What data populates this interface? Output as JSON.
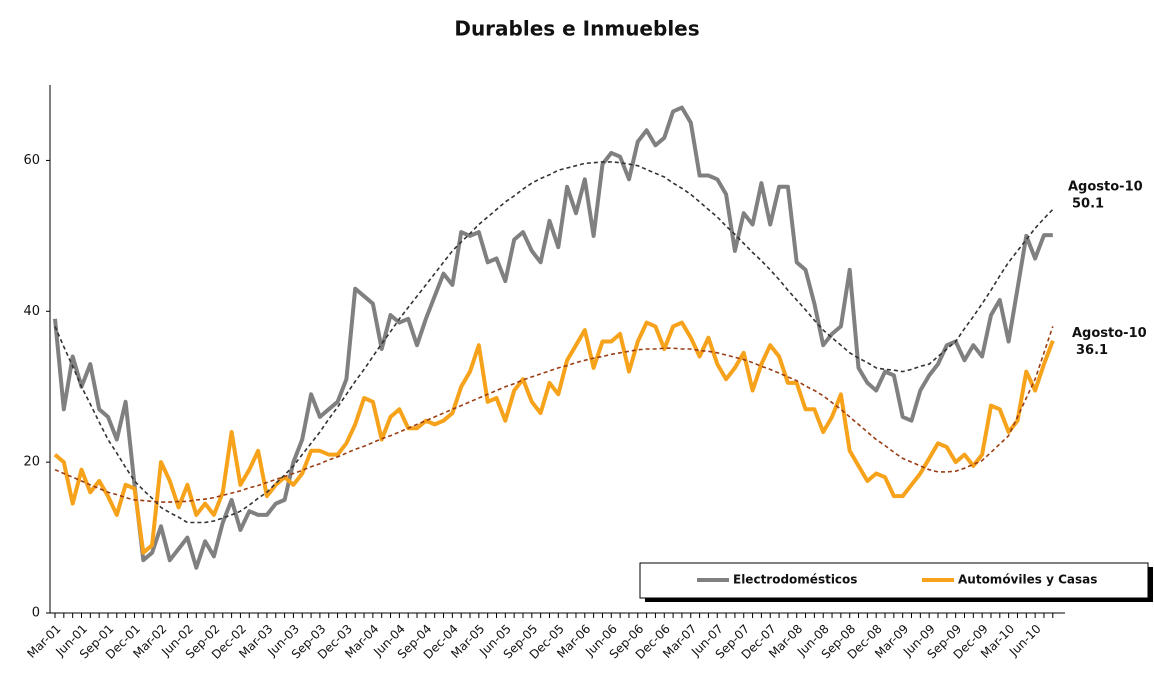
{
  "chart_data": {
    "type": "line",
    "title": "Durables e Inmuebles",
    "categories": [
      "Mar-01",
      null,
      null,
      "Jun-01",
      null,
      null,
      "Sep-01",
      null,
      null,
      "Dec-01",
      null,
      null,
      "Mar-02",
      null,
      null,
      "Jun-02",
      null,
      null,
      "Sep-02",
      null,
      null,
      "Dec-02",
      null,
      null,
      "Mar-03",
      null,
      null,
      "Jun-03",
      null,
      null,
      "Sep-03",
      null,
      null,
      "Dec-03",
      null,
      null,
      "Mar-04",
      null,
      null,
      "Jun-04",
      null,
      null,
      "Sep-04",
      null,
      null,
      "Dec-04",
      null,
      null,
      "Mar-05",
      null,
      null,
      "Jun-05",
      null,
      null,
      "Sep-05",
      null,
      null,
      "Dec-05",
      null,
      null,
      "Mar-06",
      null,
      null,
      "Jun-06",
      null,
      null,
      "Sep-06",
      null,
      null,
      "Dec-06",
      null,
      null,
      "Mar-07",
      null,
      null,
      "Jun-07",
      null,
      null,
      "Sep-07",
      null,
      null,
      "Dec-07",
      null,
      null,
      "Mar-08",
      null,
      null,
      "Jun-08",
      null,
      null,
      "Sep-08",
      null,
      null,
      "Dec-08",
      null,
      null,
      "Mar-09",
      null,
      null,
      "Jun-09",
      null,
      null,
      "Sep-09",
      null,
      null,
      "Dec-09",
      null,
      null,
      "Mar-10",
      null,
      null,
      "Jun-10",
      null,
      null
    ],
    "series": [
      {
        "name": "Electrodomésticos",
        "color": "#808080",
        "values": [
          39,
          27,
          34,
          30,
          33,
          27,
          26,
          23,
          28,
          17,
          7,
          8,
          11.5,
          7,
          8.5,
          10,
          6,
          9.5,
          7.5,
          12,
          15,
          11,
          13.5,
          13,
          13,
          14.5,
          15,
          20,
          23,
          29,
          26,
          27,
          28,
          31,
          43,
          42,
          41,
          35,
          39.5,
          38.5,
          39,
          35.5,
          39,
          42,
          45,
          43.5,
          50.5,
          50,
          50.5,
          46.5,
          47,
          44,
          49.5,
          50.5,
          48,
          46.5,
          52,
          48.5,
          56.5,
          53,
          57.5,
          50,
          59.5,
          61,
          60.5,
          57.5,
          62.5,
          64,
          62,
          63,
          66.5,
          67,
          65,
          58,
          58,
          57.5,
          55.5,
          48,
          53,
          51.5,
          57,
          51.5,
          56.5,
          56.5,
          46.5,
          45.5,
          41,
          35.5,
          37,
          38,
          45.5,
          32.5,
          30.5,
          29.5,
          32,
          31.5,
          26,
          25.5,
          29.5,
          31.5,
          33,
          35.5,
          36,
          33.5,
          35.5,
          34,
          39.5,
          41.5,
          36,
          43,
          50,
          47,
          50.1,
          50.1
        ]
      },
      {
        "name": "Automóviles y Casas",
        "color": "#f7a21b",
        "values": [
          21,
          20,
          14.5,
          19,
          16,
          17.5,
          15.5,
          13,
          17,
          16.5,
          8,
          9,
          20,
          17.5,
          14,
          17,
          13,
          14.5,
          13,
          16,
          24,
          17,
          19,
          21.5,
          15.5,
          17,
          18,
          17,
          18.5,
          21.5,
          21.5,
          21,
          21,
          22.5,
          25,
          28.5,
          28,
          23,
          26,
          27,
          24.5,
          24.5,
          25.5,
          25,
          25.5,
          26.5,
          30,
          32,
          35.5,
          28,
          28.5,
          25.5,
          29.5,
          31,
          28,
          26.5,
          30.5,
          29,
          33.5,
          35.5,
          37.5,
          32.5,
          36,
          36,
          37,
          32,
          36,
          38.5,
          38,
          35,
          38,
          38.5,
          36.5,
          34,
          36.5,
          33,
          31,
          32.5,
          34.5,
          29.5,
          33,
          35.5,
          34,
          30.5,
          30.5,
          27,
          27,
          24,
          26,
          29,
          21.5,
          19.5,
          17.5,
          18.5,
          18,
          15.5,
          15.5,
          17,
          18.5,
          20.5,
          22.5,
          22,
          20,
          21,
          19.5,
          21,
          27.5,
          27,
          24,
          25.5,
          32,
          29.5,
          33,
          36.1
        ]
      }
    ],
    "trendlines": [
      {
        "color": "#333333",
        "values": [
          38,
          35.3,
          32.7,
          30,
          27.7,
          25.3,
          23,
          21.2,
          19.3,
          17.5,
          16.3,
          15.2,
          14,
          13.3,
          12.7,
          12,
          12,
          12,
          12.2,
          12.6,
          13,
          13.5,
          14.3,
          15.2,
          16,
          17.2,
          18.3,
          19.5,
          21,
          22.5,
          24,
          25.7,
          27.3,
          29,
          30.7,
          32.3,
          34,
          35.7,
          37.3,
          39,
          40.5,
          42,
          43.5,
          45,
          46.5,
          48,
          49.2,
          50.3,
          51.5,
          52.5,
          53.5,
          54.5,
          55.3,
          56.2,
          57,
          57.6,
          58.1,
          58.7,
          59,
          59.3,
          59.6,
          59.7,
          59.8,
          59.8,
          59.7,
          59.5,
          59.3,
          58.8,
          58.3,
          57.8,
          57,
          56.3,
          55.5,
          54.5,
          53.5,
          52.5,
          51.3,
          50.2,
          49,
          47.8,
          46.7,
          45.5,
          44.2,
          42.8,
          41.5,
          40.2,
          38.8,
          37.5,
          36.5,
          35.5,
          34.5,
          33.8,
          33.2,
          32.5,
          32.3,
          32.2,
          32,
          32.3,
          32.7,
          33,
          34,
          35,
          36,
          37.7,
          39.3,
          41,
          42.8,
          44.7,
          46.5,
          48,
          49.5,
          51,
          52.3,
          53.5
        ]
      },
      {
        "color": "#9a3d14",
        "values": [
          19,
          18.5,
          18,
          17.5,
          17,
          16.5,
          16,
          15.7,
          15.3,
          15,
          14.9,
          14.8,
          14.7,
          14.7,
          14.8,
          14.8,
          15,
          15.1,
          15.3,
          15.6,
          15.9,
          16.2,
          16.6,
          16.9,
          17.3,
          17.7,
          18.1,
          18.5,
          18.9,
          19.4,
          19.8,
          20.3,
          20.7,
          21.2,
          21.7,
          22.1,
          22.6,
          23.1,
          23.5,
          24,
          24.5,
          25,
          25.5,
          26,
          26.5,
          27,
          27.5,
          28,
          28.5,
          29,
          29.5,
          30,
          30.4,
          30.9,
          31.3,
          31.7,
          32.1,
          32.5,
          32.8,
          33.2,
          33.5,
          33.8,
          34,
          34.3,
          34.5,
          34.7,
          34.9,
          35,
          35,
          35.1,
          35.1,
          35,
          35,
          34.8,
          34.7,
          34.5,
          34.2,
          33.9,
          33.6,
          33.2,
          32.7,
          32.3,
          31.8,
          31.3,
          30.8,
          30.1,
          29.5,
          28.8,
          27.9,
          27,
          26,
          25,
          24,
          23,
          22.2,
          21.3,
          20.5,
          20,
          19.5,
          19,
          18.7,
          18.7,
          18.8,
          19.2,
          19.7,
          20.2,
          21.3,
          22.4,
          23.5,
          26,
          28.5,
          31,
          34.5,
          38
        ]
      }
    ],
    "annotations": [
      {
        "label": "Agosto-10",
        "value": "50.1"
      },
      {
        "label": "Agosto-10",
        "value": "36.1"
      }
    ],
    "ylim": [
      0,
      70
    ],
    "yticks": [
      0,
      20,
      40,
      60
    ],
    "grid": false,
    "legend": "lower right"
  }
}
